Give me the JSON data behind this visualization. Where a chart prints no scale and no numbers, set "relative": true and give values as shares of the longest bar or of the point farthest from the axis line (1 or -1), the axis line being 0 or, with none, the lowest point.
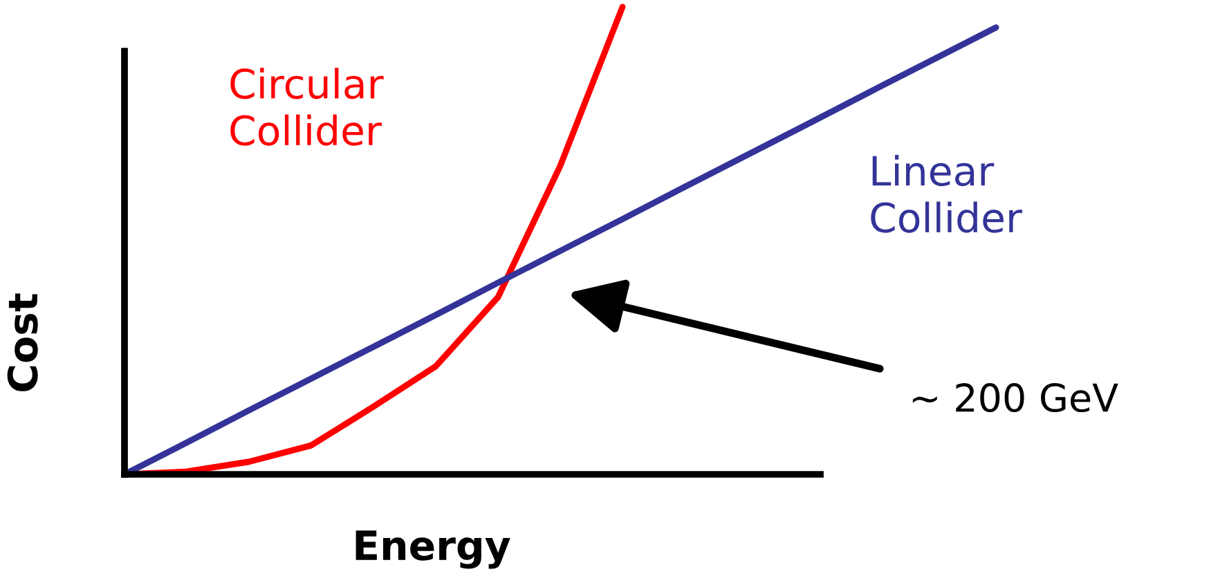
{
  "chart_data": {
    "type": "line",
    "relative": true,
    "xlabel": "Energy",
    "ylabel": "Cost",
    "categories": [
      null,
      null,
      null,
      null,
      null,
      null,
      null,
      null,
      null,
      null,
      null,
      null,
      null,
      null,
      null
    ],
    "series": [
      {
        "name": "Circular\nCollider",
        "color": "#ff0000",
        "values": [
          0,
          0.006,
          0.027,
          0.062,
          0.145,
          0.231,
          0.379,
          0.66,
          1.0,
          null,
          null,
          null,
          null,
          null,
          null
        ]
      },
      {
        "name": "Linear\nCollider",
        "color": "#333399",
        "values": [
          0,
          0.068,
          0.137,
          0.205,
          0.273,
          0.341,
          0.41,
          0.478,
          0.546,
          0.615,
          0.683,
          0.751,
          0.82,
          0.888,
          0.956
        ]
      }
    ],
    "annotations": [
      "~ 200 GeV"
    ],
    "grid": false,
    "legend": false,
    "marker": "none",
    "line_style": "solid"
  }
}
